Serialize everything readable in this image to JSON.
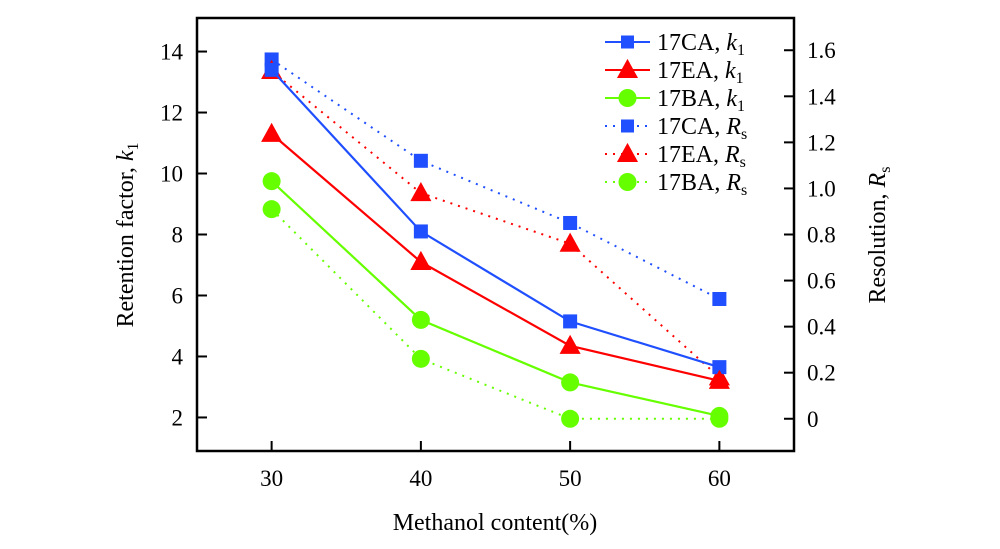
{
  "chart_data": {
    "type": "line",
    "title": "",
    "xlabel": "Methanol content(%)",
    "ylabel": {
      "main": "Retention factor, ",
      "var": "k",
      "sub": "1"
    },
    "y2label": {
      "main": "Resolution, ",
      "var": "R",
      "sub": "s"
    },
    "x": [
      30,
      40,
      50,
      60
    ],
    "xlim": [
      25,
      65
    ],
    "ylim": [
      0.9,
      15.1
    ],
    "y2lim": [
      -0.14,
      1.74
    ],
    "xticks": [
      30,
      40,
      50,
      60
    ],
    "yticks": [
      2,
      4,
      6,
      8,
      10,
      12,
      14
    ],
    "y2ticks": [
      0,
      0.2,
      0.4,
      0.6,
      0.8,
      1.0,
      1.2,
      1.4,
      1.6
    ],
    "y2tick_labels": [
      "0",
      "0.2",
      "0.4",
      "0.6",
      "0.8",
      "1.0",
      "1.2",
      "1.4",
      "1.6"
    ],
    "grid": false,
    "legend_position": "top-right",
    "series": [
      {
        "name": "17CA, k1",
        "label_main": "17CA, ",
        "label_var": "k",
        "label_sub": "1",
        "axis": "left",
        "line": "solid",
        "marker": "square",
        "color": "#1f4fff",
        "values": [
          13.4,
          8.1,
          5.15,
          3.65
        ]
      },
      {
        "name": "17EA, k1",
        "label_main": "17EA, ",
        "label_var": "k",
        "label_sub": "1",
        "axis": "left",
        "line": "solid",
        "marker": "triangle",
        "color": "#ff0000",
        "values": [
          11.3,
          7.1,
          4.35,
          3.2
        ]
      },
      {
        "name": "17BA, k1",
        "label_main": "17BA, ",
        "label_var": "k",
        "label_sub": "1",
        "axis": "left",
        "line": "solid",
        "marker": "circle",
        "color": "#66ff00",
        "values": [
          9.75,
          5.2,
          3.15,
          2.05
        ]
      },
      {
        "name": "17CA, Rs",
        "label_main": "17CA, ",
        "label_var": "R",
        "label_sub": "s",
        "axis": "right",
        "line": "dotted",
        "marker": "square",
        "color": "#1f4fff",
        "values": [
          1.56,
          1.12,
          0.85,
          0.52
        ]
      },
      {
        "name": "17EA, Rs",
        "label_main": "17EA, ",
        "label_var": "R",
        "label_sub": "s",
        "axis": "right",
        "line": "dotted",
        "marker": "triangle",
        "color": "#ff0000",
        "values": [
          1.51,
          0.98,
          0.76,
          0.18
        ]
      },
      {
        "name": "17BA, Rs",
        "label_main": "17BA, ",
        "label_var": "R",
        "label_sub": "s",
        "axis": "right",
        "line": "dotted",
        "marker": "circle",
        "color": "#66ff00",
        "values": [
          0.91,
          0.26,
          0.0,
          0.0
        ]
      }
    ]
  }
}
